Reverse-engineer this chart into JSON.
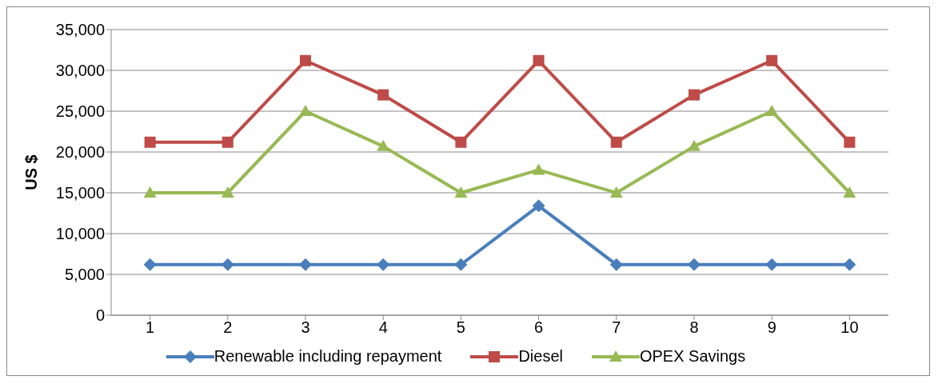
{
  "chart_data": {
    "type": "line",
    "ylabel": "US $",
    "categories": [
      "1",
      "2",
      "3",
      "4",
      "5",
      "6",
      "7",
      "8",
      "9",
      "10"
    ],
    "series": [
      {
        "name": "Renewable including repayment",
        "color": "#4a7ebb",
        "marker": "diamond",
        "values": [
          6200,
          6200,
          6200,
          6200,
          6200,
          13400,
          6200,
          6200,
          6200,
          6200
        ]
      },
      {
        "name": "Diesel",
        "color": "#be4b48",
        "marker": "square",
        "values": [
          21200,
          21200,
          31200,
          27000,
          21200,
          31200,
          21200,
          27000,
          31200,
          21200
        ]
      },
      {
        "name": "OPEX Savings",
        "color": "#98b954",
        "marker": "triangle",
        "values": [
          15000,
          15000,
          25000,
          20700,
          15000,
          17800,
          15000,
          20700,
          25000,
          15000
        ]
      }
    ],
    "ylim": [
      0,
      35000
    ],
    "yticks": [
      0,
      {
        "value": 5000,
        "label": "5,000"
      },
      {
        "value": 10000,
        "label": "10,000"
      },
      {
        "value": 15000,
        "label": "15,000"
      },
      {
        "value": 20000,
        "label": "20,000"
      },
      {
        "value": 25000,
        "label": "25,000"
      },
      {
        "value": 30000,
        "label": "30,000"
      },
      {
        "value": 35000,
        "label": "35,000"
      }
    ],
    "grid": "y",
    "legend": "bottom"
  }
}
